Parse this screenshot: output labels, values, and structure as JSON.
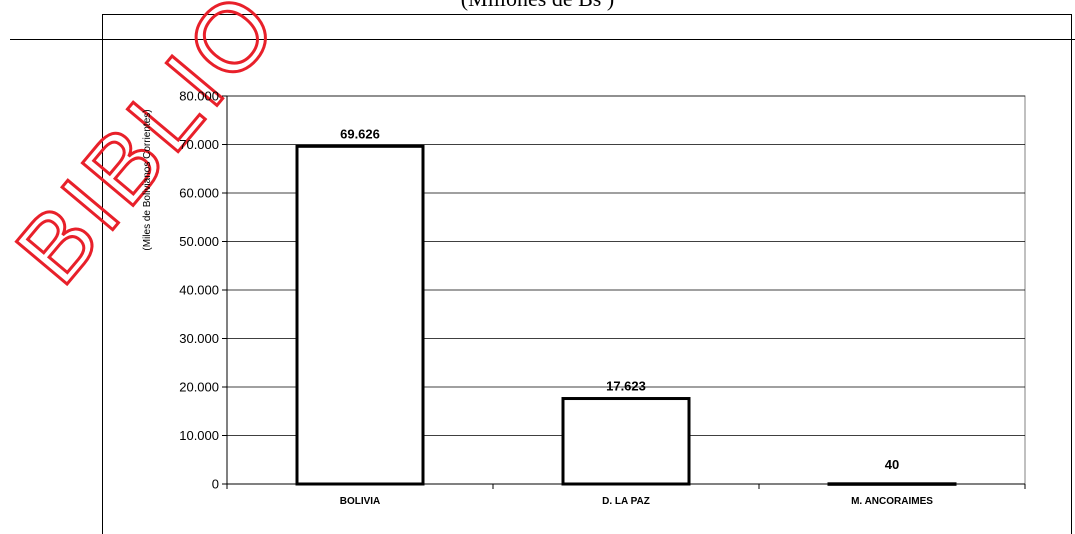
{
  "page": {
    "title": "(Millones de Bs )",
    "watermark": "BIBLIO"
  },
  "colors": {
    "bar_fill": "#ffffff",
    "bar_stroke": "#000000",
    "grid": "#000000",
    "watermark": "#e8202a"
  },
  "chart_data": {
    "type": "bar",
    "categories": [
      "BOLIVIA",
      "D. LA PAZ",
      "M. ANCORAIMES"
    ],
    "values": [
      69626,
      17623,
      40
    ],
    "data_labels": [
      "69.626",
      "17.623",
      "40"
    ],
    "ylabel": "(Miles de Bolivianos Corrientes)",
    "xlabel": "",
    "ylim": [
      0,
      80000
    ],
    "y_ticks": [
      0,
      10000,
      20000,
      30000,
      40000,
      50000,
      60000,
      70000,
      80000
    ],
    "y_tick_labels": [
      "0",
      "10.000",
      "20.000",
      "30.000",
      "40.000",
      "50.000",
      "60.000",
      "70.000",
      "80.000"
    ],
    "grid": true,
    "legend": "none"
  }
}
